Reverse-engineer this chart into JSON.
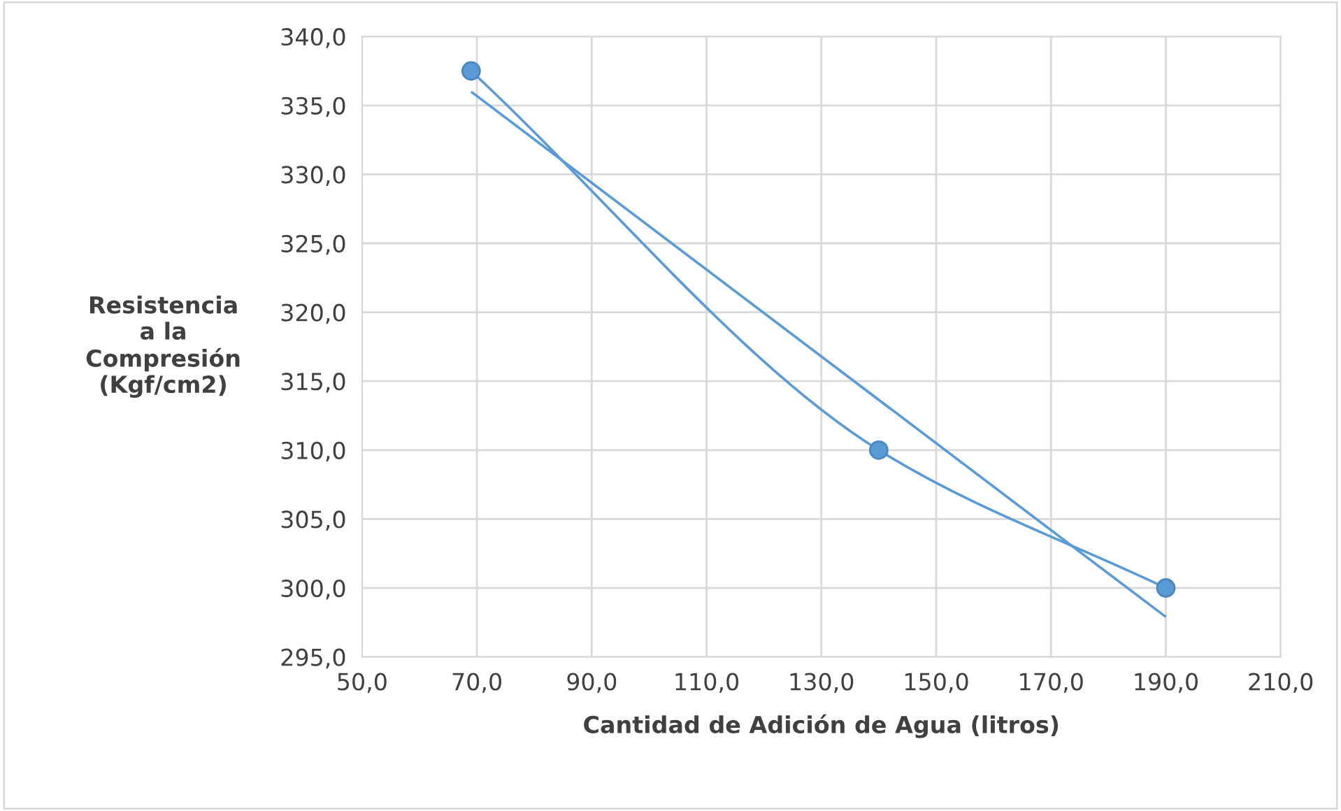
{
  "chart_data": {
    "type": "line",
    "xlabel": "Cantidad de Adición de Agua (litros)",
    "ylabel": "Resistencia\na la\nCompresión\n(Kgf/cm2)",
    "series": [
      {
        "color": "#5b9bd5",
        "x": [
          69,
          140,
          190
        ],
        "values": [
          337.5,
          310.0,
          300.0
        ],
        "marker": "circle"
      },
      {
        "color": "#5b9bd5",
        "x": [
          69,
          190
        ],
        "values": [
          336.0,
          297.9
        ],
        "marker": "none"
      }
    ],
    "xlim": [
      50,
      210
    ],
    "xticks": [
      {
        "value": 50,
        "label": "50,0"
      },
      {
        "value": 70,
        "label": "70,0"
      },
      {
        "value": 90,
        "label": "90,0"
      },
      {
        "value": 110,
        "label": "110,0"
      },
      {
        "value": 130,
        "label": "130,0"
      },
      {
        "value": 150,
        "label": "150,0"
      },
      {
        "value": 170,
        "label": "170,0"
      },
      {
        "value": 190,
        "label": "190,0"
      },
      {
        "value": 210,
        "label": "210,0"
      }
    ],
    "ylim": [
      295,
      340
    ],
    "yticks": [
      {
        "value": 295,
        "label": "295,0"
      },
      {
        "value": 300,
        "label": "300,0"
      },
      {
        "value": 305,
        "label": "305,0"
      },
      {
        "value": 310,
        "label": "310,0"
      },
      {
        "value": 315,
        "label": "315,0"
      },
      {
        "value": 320,
        "label": "320,0"
      },
      {
        "value": 325,
        "label": "325,0"
      },
      {
        "value": 330,
        "label": "330,0"
      },
      {
        "value": 335,
        "label": "335,0"
      },
      {
        "value": 340,
        "label": "340,0"
      }
    ],
    "grid": true
  }
}
